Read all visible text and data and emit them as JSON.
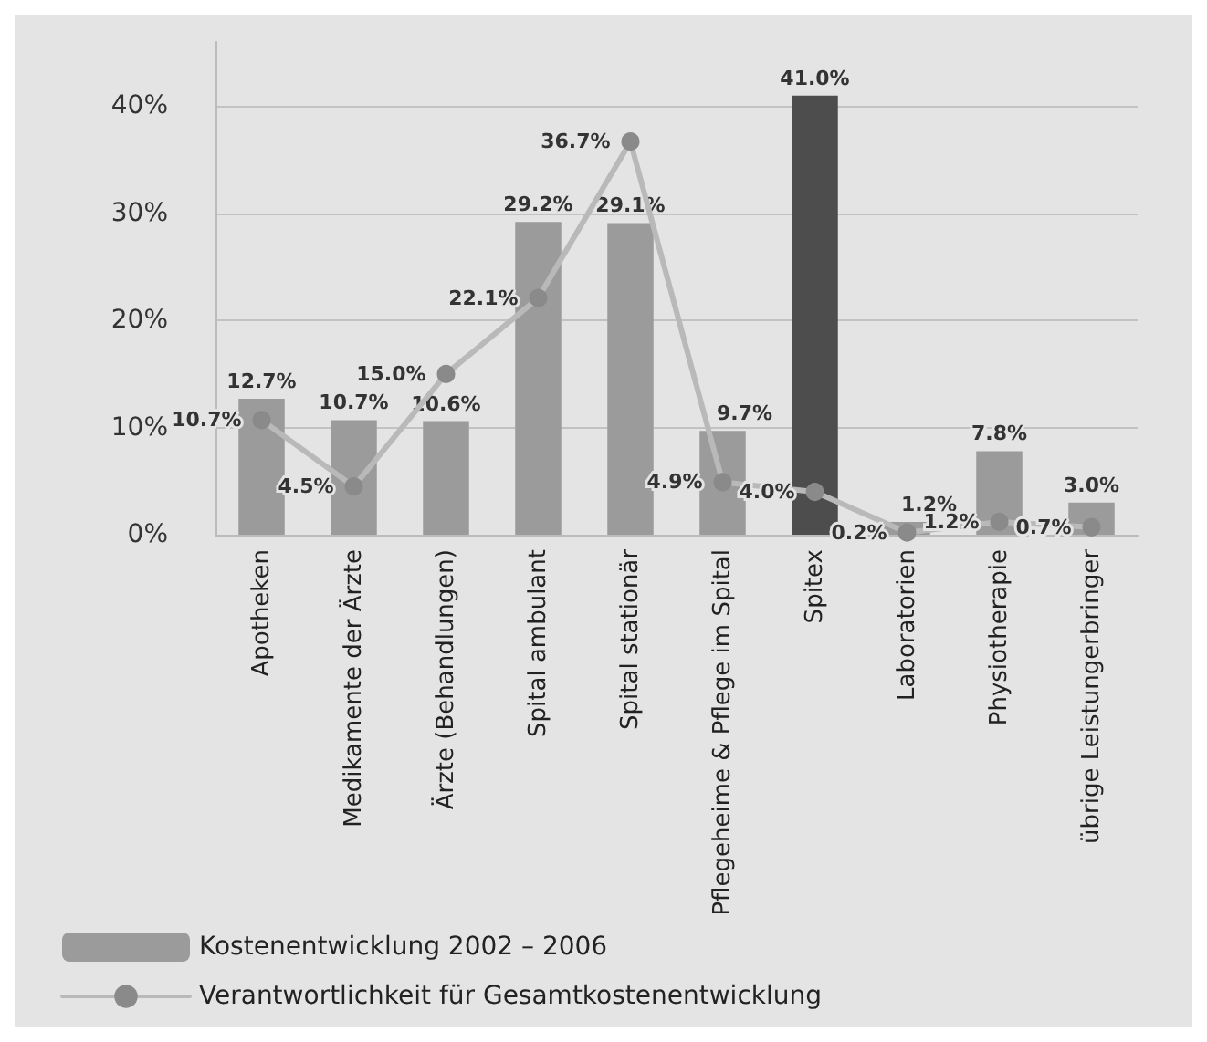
{
  "chart_data": {
    "type": "bar",
    "categories": [
      "Apotheken",
      "Medikamente der Ärzte",
      "Ärzte (Behandlungen)",
      "Spital ambulant",
      "Spital stationär",
      "Pflegeheime & Pflege im Spital",
      "Spitex",
      "Laboratorien",
      "Physiotherapie",
      "übrige Leistungerbringer"
    ],
    "series": [
      {
        "name": "Kostenentwicklung 2002 – 2006",
        "type": "bar",
        "color": "#9b9b9b",
        "colors": [
          "#9b9b9b",
          "#9b9b9b",
          "#9b9b9b",
          "#9b9b9b",
          "#9b9b9b",
          "#9b9b9b",
          "#4d4d4d",
          "#9b9b9b",
          "#9b9b9b",
          "#9b9b9b"
        ],
        "values": [
          12.7,
          10.7,
          10.6,
          29.2,
          29.1,
          9.7,
          41.0,
          1.2,
          7.8,
          3.0
        ],
        "value_labels": [
          "12.7%",
          "10.7%",
          "10.6%",
          "29.2%",
          "29.1%",
          "9.7%",
          "41.0%",
          "1.2%",
          "7.8%",
          "3.0%"
        ]
      },
      {
        "name": "Verantwortlichkeit für Gesamtkostenentwicklung",
        "type": "line",
        "color": "#b9b9b9",
        "values": [
          10.7,
          4.5,
          15.0,
          22.1,
          36.7,
          4.9,
          4.0,
          0.2,
          1.2,
          0.7
        ],
        "value_labels": [
          "10.7%",
          "4.5%",
          "15.0%",
          "22.1%",
          "36.7%",
          "4.9%",
          "4.0%",
          "0.2%",
          "1.2%",
          "0.7%"
        ]
      }
    ],
    "ylim": [
      0,
      46
    ],
    "yticks": [
      {
        "value": 0,
        "label": "0%"
      },
      {
        "value": 10,
        "label": "10%"
      },
      {
        "value": 20,
        "label": "20%"
      },
      {
        "value": 30,
        "label": "30%"
      },
      {
        "value": 40,
        "label": "40%"
      }
    ],
    "grid": "y",
    "legend": "bottom left",
    "marker": "circle",
    "line_style": "solid"
  }
}
